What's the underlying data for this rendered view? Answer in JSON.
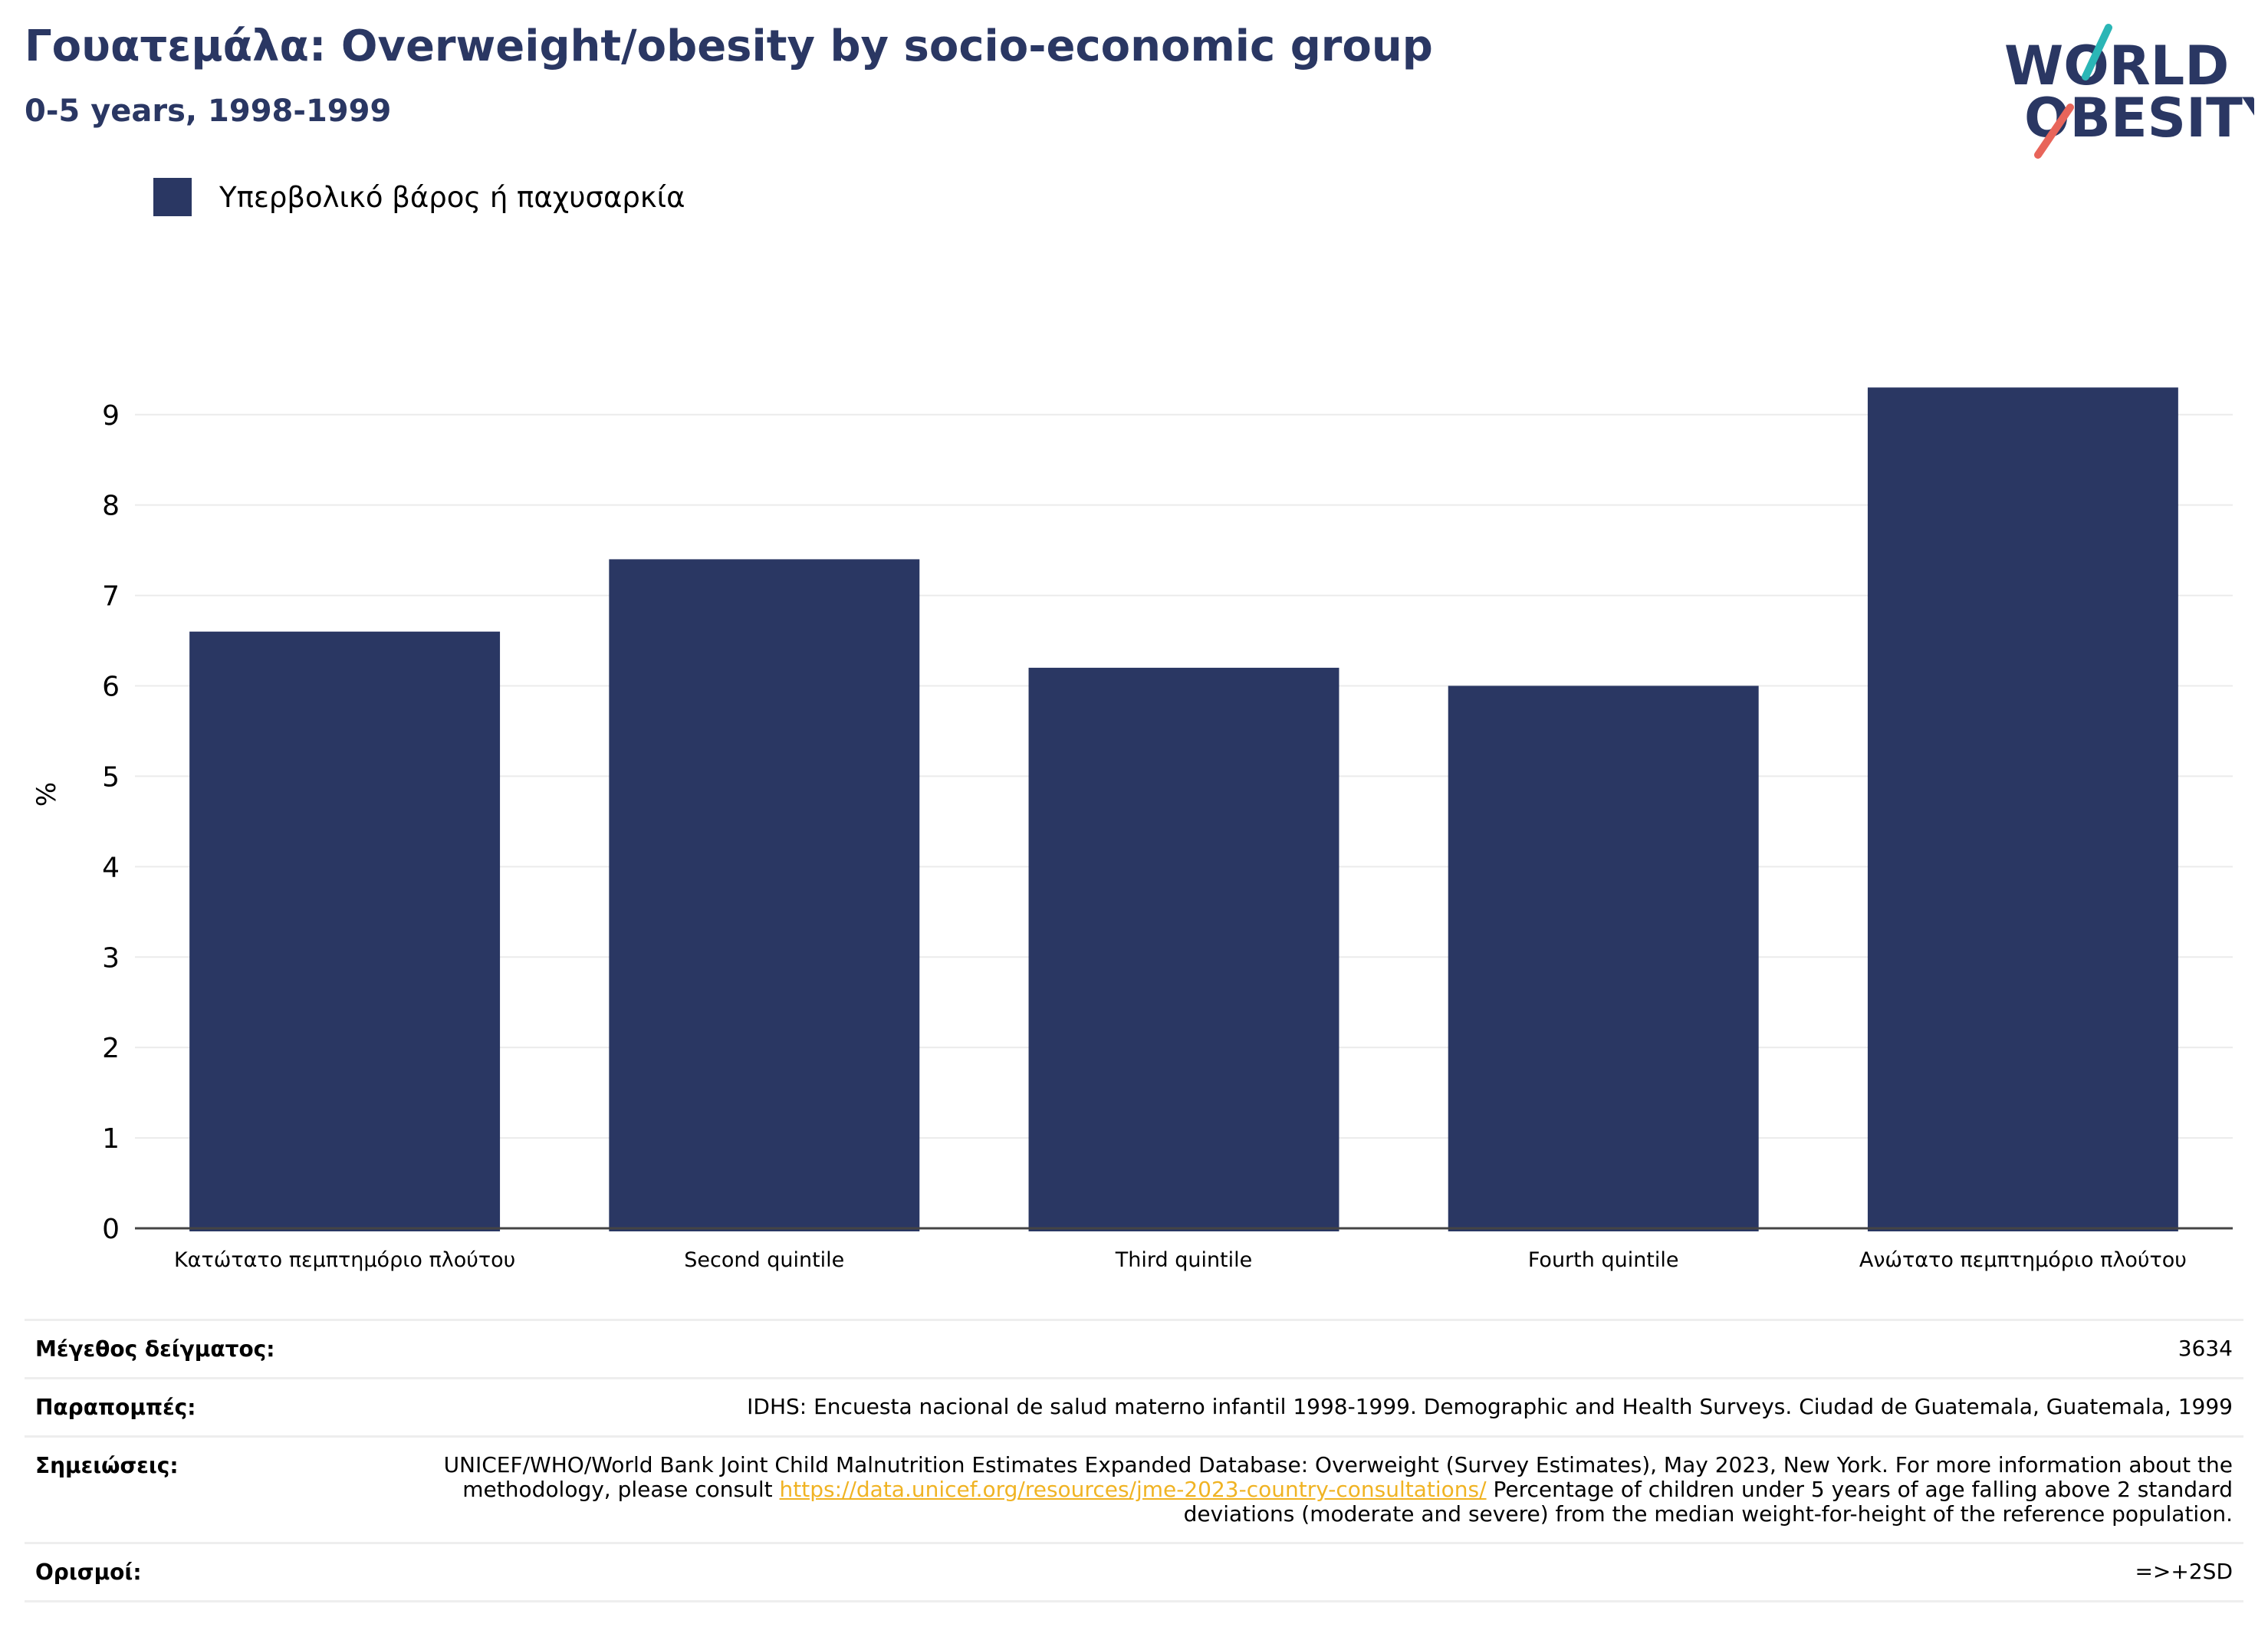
{
  "header": {
    "title": "Γουατεμάλα: Overweight/obesity by socio-economic group",
    "subtitle": "0-5 years, 1998-1999"
  },
  "logo": {
    "line1": "WORLD",
    "line2": "OBESITY",
    "colors": {
      "text": "#2a3763",
      "slash_top": "#2bb6b6",
      "slash_bottom": "#e8655a"
    }
  },
  "chart_data": {
    "type": "bar",
    "categories": [
      "Κατώτατο πεμπτημόριο πλούτου",
      "Second quintile",
      "Third quintile",
      "Fourth quintile",
      "Ανώτατο πεμπτημόριο πλούτου"
    ],
    "series": [
      {
        "name": "Υπερβολικό βάρος ή παχυσαρκία",
        "values": [
          6.6,
          7.4,
          6.2,
          6.0,
          9.3
        ],
        "color": "#2a3763"
      }
    ],
    "ylabel": "%",
    "xlabel": "",
    "ylim": [
      0,
      9.6
    ],
    "yticks": [
      0,
      1,
      2,
      3,
      4,
      5,
      6,
      7,
      8,
      9
    ],
    "grid": true,
    "legend_position": "top-left"
  },
  "info": {
    "sample_label": "Μέγεθος δείγματος:",
    "sample_value": "3634",
    "refs_label": "Παραπομπές:",
    "refs_value": "IDHS: Encuesta nacional de salud materno infantil 1998-1999. Demographic and Health Surveys. Ciudad de Guatemala, Guatemala, 1999",
    "notes_label": "Σημειώσεις:",
    "notes_before": "UNICEF/WHO/World Bank Joint Child Malnutrition Estimates Expanded Database: Overweight (Survey Estimates), May 2023, New York. For more information about the methodology, please consult",
    "notes_link": "https://data.unicef.org/resources/jme-2023-country-consultations/",
    "notes_after": "Percentage of children under 5 years of age falling above 2 standard deviations (moderate and severe) from the median weight-for-height of the reference population.",
    "defs_label": "Ορισμοί:",
    "defs_value": "=>+2SD"
  }
}
